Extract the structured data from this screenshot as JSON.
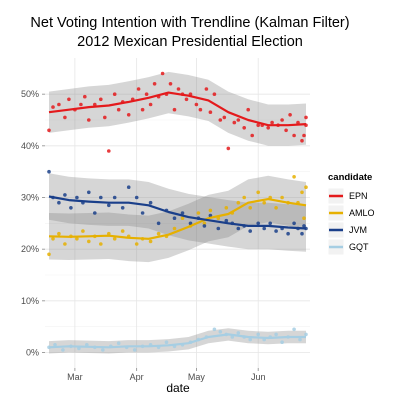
{
  "chart_data": {
    "type": "scatter",
    "title": "Net Voting Intention with Trendline (Kalman Filter)",
    "subtitle": "2012 Mexican Presidential Election",
    "xlabel": "date",
    "ylabel": "",
    "x_type": "date",
    "xlim": [
      "2012-02-15",
      "2012-06-27"
    ],
    "x_ticks": [
      {
        "label": "Mar",
        "date": "2012-03-01"
      },
      {
        "label": "Apr",
        "date": "2012-04-01"
      },
      {
        "label": "May",
        "date": "2012-05-01"
      },
      {
        "label": "Jun",
        "date": "2012-06-01"
      }
    ],
    "ylim": [
      -0.03,
      0.57
    ],
    "y_ticks": [
      {
        "label": "0%",
        "value": 0
      },
      {
        "label": "10%",
        "value": 0.1
      },
      {
        "label": "20%",
        "value": 0.2
      },
      {
        "label": "30%",
        "value": 0.3
      },
      {
        "label": "40%",
        "value": 0.4
      },
      {
        "label": "50%",
        "value": 0.5
      }
    ],
    "grid": true,
    "legend_position": "right",
    "legend_title": "candidate",
    "series": [
      {
        "name": "EPN",
        "color": "#e41a1c",
        "points": [
          [
            "2012-02-17",
            0.43
          ],
          [
            "2012-02-19",
            0.475
          ],
          [
            "2012-02-22",
            0.48
          ],
          [
            "2012-02-25",
            0.455
          ],
          [
            "2012-02-27",
            0.49
          ],
          [
            "2012-03-01",
            0.47
          ],
          [
            "2012-03-04",
            0.48
          ],
          [
            "2012-03-06",
            0.495
          ],
          [
            "2012-03-08",
            0.45
          ],
          [
            "2012-03-11",
            0.48
          ],
          [
            "2012-03-14",
            0.49
          ],
          [
            "2012-03-16",
            0.455
          ],
          [
            "2012-03-18",
            0.39
          ],
          [
            "2012-03-21",
            0.5
          ],
          [
            "2012-03-23",
            0.47
          ],
          [
            "2012-03-25",
            0.485
          ],
          [
            "2012-03-28",
            0.46
          ],
          [
            "2012-03-30",
            0.49
          ],
          [
            "2012-04-02",
            0.51
          ],
          [
            "2012-04-04",
            0.47
          ],
          [
            "2012-04-06",
            0.5
          ],
          [
            "2012-04-08",
            0.48
          ],
          [
            "2012-04-10",
            0.52
          ],
          [
            "2012-04-12",
            0.495
          ],
          [
            "2012-04-14",
            0.54
          ],
          [
            "2012-04-16",
            0.5
          ],
          [
            "2012-04-18",
            0.52
          ],
          [
            "2012-04-20",
            0.47
          ],
          [
            "2012-04-22",
            0.51
          ],
          [
            "2012-04-24",
            0.5
          ],
          [
            "2012-04-26",
            0.49
          ],
          [
            "2012-04-28",
            0.5
          ],
          [
            "2012-05-01",
            0.48
          ],
          [
            "2012-05-03",
            0.47
          ],
          [
            "2012-05-06",
            0.51
          ],
          [
            "2012-05-08",
            0.465
          ],
          [
            "2012-05-10",
            0.5
          ],
          [
            "2012-05-13",
            0.45
          ],
          [
            "2012-05-15",
            0.455
          ],
          [
            "2012-05-17",
            0.395
          ],
          [
            "2012-05-20",
            0.445
          ],
          [
            "2012-05-22",
            0.45
          ],
          [
            "2012-05-25",
            0.435
          ],
          [
            "2012-05-27",
            0.47
          ],
          [
            "2012-05-29",
            0.42
          ],
          [
            "2012-06-01",
            0.44
          ],
          [
            "2012-06-03",
            0.44
          ],
          [
            "2012-06-06",
            0.435
          ],
          [
            "2012-06-08",
            0.445
          ],
          [
            "2012-06-11",
            0.44
          ],
          [
            "2012-06-13",
            0.45
          ],
          [
            "2012-06-15",
            0.43
          ],
          [
            "2012-06-17",
            0.46
          ],
          [
            "2012-06-19",
            0.42
          ],
          [
            "2012-06-21",
            0.445
          ],
          [
            "2012-06-23",
            0.41
          ],
          [
            "2012-06-24",
            0.42
          ],
          [
            "2012-06-25",
            0.455
          ],
          [
            "2012-06-25",
            0.44
          ]
        ],
        "trend": [
          [
            "2012-02-17",
            0.465
          ],
          [
            "2012-02-27",
            0.47
          ],
          [
            "2012-03-08",
            0.475
          ],
          [
            "2012-03-18",
            0.478
          ],
          [
            "2012-03-28",
            0.485
          ],
          [
            "2012-04-07",
            0.493
          ],
          [
            "2012-04-17",
            0.503
          ],
          [
            "2012-04-27",
            0.497
          ],
          [
            "2012-05-07",
            0.488
          ],
          [
            "2012-05-17",
            0.465
          ],
          [
            "2012-05-27",
            0.45
          ],
          [
            "2012-06-06",
            0.44
          ],
          [
            "2012-06-16",
            0.44
          ],
          [
            "2012-06-25",
            0.442
          ]
        ],
        "band_width": 0.04
      },
      {
        "name": "AMLO",
        "color": "#e6b000",
        "points": [
          [
            "2012-02-17",
            0.19
          ],
          [
            "2012-02-19",
            0.22
          ],
          [
            "2012-02-22",
            0.23
          ],
          [
            "2012-02-25",
            0.21
          ],
          [
            "2012-02-28",
            0.225
          ],
          [
            "2012-03-02",
            0.22
          ],
          [
            "2012-03-05",
            0.235
          ],
          [
            "2012-03-08",
            0.215
          ],
          [
            "2012-03-11",
            0.225
          ],
          [
            "2012-03-14",
            0.21
          ],
          [
            "2012-03-18",
            0.23
          ],
          [
            "2012-03-21",
            0.22
          ],
          [
            "2012-03-25",
            0.235
          ],
          [
            "2012-03-28",
            0.225
          ],
          [
            "2012-04-01",
            0.21
          ],
          [
            "2012-04-04",
            0.22
          ],
          [
            "2012-04-08",
            0.215
          ],
          [
            "2012-04-12",
            0.23
          ],
          [
            "2012-04-16",
            0.225
          ],
          [
            "2012-04-20",
            0.24
          ],
          [
            "2012-04-24",
            0.26
          ],
          [
            "2012-04-28",
            0.245
          ],
          [
            "2012-05-02",
            0.27
          ],
          [
            "2012-05-05",
            0.25
          ],
          [
            "2012-05-08",
            0.275
          ],
          [
            "2012-05-12",
            0.26
          ],
          [
            "2012-05-16",
            0.28
          ],
          [
            "2012-05-19",
            0.27
          ],
          [
            "2012-05-22",
            0.29
          ],
          [
            "2012-05-25",
            0.3
          ],
          [
            "2012-05-28",
            0.28
          ],
          [
            "2012-06-01",
            0.31
          ],
          [
            "2012-06-04",
            0.29
          ],
          [
            "2012-06-07",
            0.3
          ],
          [
            "2012-06-10",
            0.28
          ],
          [
            "2012-06-13",
            0.3
          ],
          [
            "2012-06-16",
            0.29
          ],
          [
            "2012-06-19",
            0.34
          ],
          [
            "2012-06-21",
            0.29
          ],
          [
            "2012-06-23",
            0.31
          ],
          [
            "2012-06-24",
            0.26
          ],
          [
            "2012-06-25",
            0.32
          ]
        ],
        "trend": [
          [
            "2012-02-17",
            0.225
          ],
          [
            "2012-02-27",
            0.224
          ],
          [
            "2012-03-08",
            0.225
          ],
          [
            "2012-03-18",
            0.226
          ],
          [
            "2012-03-28",
            0.222
          ],
          [
            "2012-04-07",
            0.22
          ],
          [
            "2012-04-17",
            0.228
          ],
          [
            "2012-04-27",
            0.243
          ],
          [
            "2012-05-07",
            0.26
          ],
          [
            "2012-05-17",
            0.268
          ],
          [
            "2012-05-27",
            0.29
          ],
          [
            "2012-06-06",
            0.297
          ],
          [
            "2012-06-16",
            0.29
          ],
          [
            "2012-06-25",
            0.285
          ]
        ],
        "band_width": 0.045
      },
      {
        "name": "JVM",
        "color": "#1a3f8a",
        "points": [
          [
            "2012-02-17",
            0.35
          ],
          [
            "2012-02-19",
            0.3
          ],
          [
            "2012-02-22",
            0.29
          ],
          [
            "2012-02-25",
            0.305
          ],
          [
            "2012-02-28",
            0.28
          ],
          [
            "2012-03-02",
            0.3
          ],
          [
            "2012-03-05",
            0.29
          ],
          [
            "2012-03-08",
            0.31
          ],
          [
            "2012-03-11",
            0.27
          ],
          [
            "2012-03-14",
            0.3
          ],
          [
            "2012-03-18",
            0.285
          ],
          [
            "2012-03-21",
            0.3
          ],
          [
            "2012-03-25",
            0.28
          ],
          [
            "2012-03-28",
            0.32
          ],
          [
            "2012-04-01",
            0.3
          ],
          [
            "2012-04-04",
            0.27
          ],
          [
            "2012-04-08",
            0.29
          ],
          [
            "2012-04-12",
            0.25
          ],
          [
            "2012-04-16",
            0.275
          ],
          [
            "2012-04-20",
            0.26
          ],
          [
            "2012-04-24",
            0.27
          ],
          [
            "2012-04-28",
            0.25
          ],
          [
            "2012-05-02",
            0.26
          ],
          [
            "2012-05-05",
            0.245
          ],
          [
            "2012-05-08",
            0.265
          ],
          [
            "2012-05-12",
            0.24
          ],
          [
            "2012-05-16",
            0.255
          ],
          [
            "2012-05-19",
            0.25
          ],
          [
            "2012-05-22",
            0.24
          ],
          [
            "2012-05-25",
            0.245
          ],
          [
            "2012-05-28",
            0.235
          ],
          [
            "2012-06-01",
            0.25
          ],
          [
            "2012-06-04",
            0.24
          ],
          [
            "2012-06-07",
            0.25
          ],
          [
            "2012-06-10",
            0.235
          ],
          [
            "2012-06-13",
            0.24
          ],
          [
            "2012-06-16",
            0.23
          ],
          [
            "2012-06-19",
            0.25
          ],
          [
            "2012-06-21",
            0.24
          ],
          [
            "2012-06-23",
            0.23
          ],
          [
            "2012-06-24",
            0.245
          ],
          [
            "2012-06-25",
            0.24
          ]
        ],
        "trend": [
          [
            "2012-02-17",
            0.302
          ],
          [
            "2012-02-27",
            0.295
          ],
          [
            "2012-03-08",
            0.292
          ],
          [
            "2012-03-18",
            0.29
          ],
          [
            "2012-03-28",
            0.29
          ],
          [
            "2012-04-07",
            0.285
          ],
          [
            "2012-04-17",
            0.272
          ],
          [
            "2012-04-27",
            0.262
          ],
          [
            "2012-05-07",
            0.256
          ],
          [
            "2012-05-17",
            0.25
          ],
          [
            "2012-05-27",
            0.245
          ],
          [
            "2012-06-06",
            0.245
          ],
          [
            "2012-06-16",
            0.242
          ],
          [
            "2012-06-25",
            0.24
          ]
        ],
        "band_width": 0.045
      },
      {
        "name": "GQT",
        "color": "#a6cee3",
        "points": [
          [
            "2012-02-17",
            0.01
          ],
          [
            "2012-02-20",
            0.015
          ],
          [
            "2012-02-24",
            0.005
          ],
          [
            "2012-02-28",
            0.012
          ],
          [
            "2012-03-03",
            0.008
          ],
          [
            "2012-03-07",
            0.015
          ],
          [
            "2012-03-11",
            0.01
          ],
          [
            "2012-03-15",
            0.005
          ],
          [
            "2012-03-19",
            0.012
          ],
          [
            "2012-03-23",
            0.018
          ],
          [
            "2012-03-27",
            0.01
          ],
          [
            "2012-03-31",
            0.005
          ],
          [
            "2012-04-04",
            0.012
          ],
          [
            "2012-04-08",
            0.015
          ],
          [
            "2012-04-12",
            0.01
          ],
          [
            "2012-04-16",
            0.02
          ],
          [
            "2012-04-20",
            0.012
          ],
          [
            "2012-04-24",
            0.015
          ],
          [
            "2012-04-28",
            0.02
          ],
          [
            "2012-05-02",
            0.025
          ],
          [
            "2012-05-06",
            0.03
          ],
          [
            "2012-05-10",
            0.045
          ],
          [
            "2012-05-13",
            0.04
          ],
          [
            "2012-05-16",
            0.035
          ],
          [
            "2012-05-19",
            0.03
          ],
          [
            "2012-05-22",
            0.038
          ],
          [
            "2012-05-25",
            0.03
          ],
          [
            "2012-05-28",
            0.025
          ],
          [
            "2012-06-01",
            0.035
          ],
          [
            "2012-06-04",
            0.025
          ],
          [
            "2012-06-07",
            0.03
          ],
          [
            "2012-06-10",
            0.035
          ],
          [
            "2012-06-13",
            0.02
          ],
          [
            "2012-06-16",
            0.03
          ],
          [
            "2012-06-19",
            0.045
          ],
          [
            "2012-06-22",
            0.025
          ],
          [
            "2012-06-25",
            0.035
          ]
        ],
        "trend": [
          [
            "2012-02-17",
            0.01
          ],
          [
            "2012-02-27",
            0.012
          ],
          [
            "2012-03-08",
            0.011
          ],
          [
            "2012-03-18",
            0.01
          ],
          [
            "2012-03-28",
            0.012
          ],
          [
            "2012-04-07",
            0.012
          ],
          [
            "2012-04-17",
            0.014
          ],
          [
            "2012-04-27",
            0.018
          ],
          [
            "2012-05-07",
            0.03
          ],
          [
            "2012-05-17",
            0.035
          ],
          [
            "2012-05-27",
            0.03
          ],
          [
            "2012-06-06",
            0.028
          ],
          [
            "2012-06-16",
            0.03
          ],
          [
            "2012-06-25",
            0.03
          ]
        ],
        "band_width": 0.012
      }
    ]
  }
}
